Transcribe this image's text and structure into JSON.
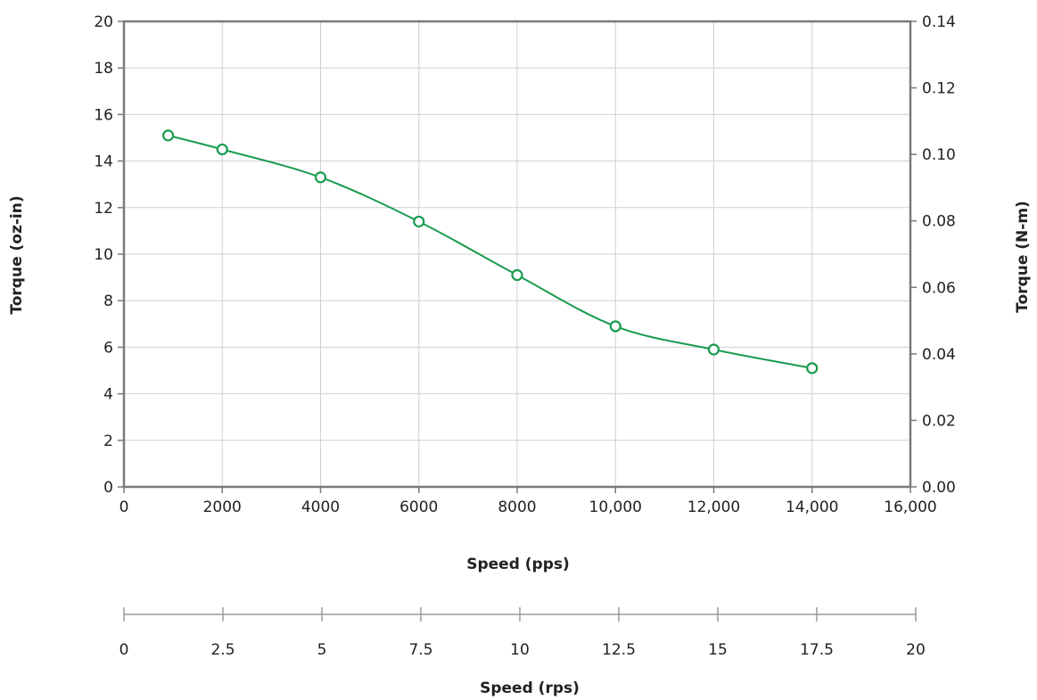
{
  "chart_data": {
    "type": "line",
    "xlabel": "Speed (pps)",
    "ylabel": "Torque (oz-in)",
    "y2label": "Torque (N-m)",
    "x2label": "Speed (rps)",
    "xlim": [
      0,
      16000
    ],
    "ylim": [
      0,
      20
    ],
    "y2lim": [
      0,
      0.14
    ],
    "x2lim": [
      0,
      20
    ],
    "grid": true,
    "x_ticks": [
      {
        "value": 0,
        "label": "0"
      },
      {
        "value": 2000,
        "label": "2000"
      },
      {
        "value": 4000,
        "label": "4000"
      },
      {
        "value": 6000,
        "label": "6000"
      },
      {
        "value": 8000,
        "label": "8000"
      },
      {
        "value": 10000,
        "label": "10,000"
      },
      {
        "value": 12000,
        "label": "12,000"
      },
      {
        "value": 14000,
        "label": "14,000"
      },
      {
        "value": 16000,
        "label": "16,000"
      }
    ],
    "y_ticks": [
      {
        "value": 0,
        "label": "0"
      },
      {
        "value": 2,
        "label": "2"
      },
      {
        "value": 4,
        "label": "4"
      },
      {
        "value": 6,
        "label": "6"
      },
      {
        "value": 8,
        "label": "8"
      },
      {
        "value": 10,
        "label": "10"
      },
      {
        "value": 12,
        "label": "12"
      },
      {
        "value": 14,
        "label": "14"
      },
      {
        "value": 16,
        "label": "16"
      },
      {
        "value": 18,
        "label": "18"
      },
      {
        "value": 20,
        "label": "20"
      }
    ],
    "y2_ticks": [
      {
        "value": 0,
        "label": "0.00"
      },
      {
        "value": 0.02,
        "label": "0.02"
      },
      {
        "value": 0.04,
        "label": "0.04"
      },
      {
        "value": 0.06,
        "label": "0.06"
      },
      {
        "value": 0.08,
        "label": "0.08"
      },
      {
        "value": 0.1,
        "label": "0.10"
      },
      {
        "value": 0.12,
        "label": "0.12"
      },
      {
        "value": 0.14,
        "label": "0.14"
      }
    ],
    "x2_ticks": [
      {
        "value": 0,
        "label": "0"
      },
      {
        "value": 2.5,
        "label": "2.5"
      },
      {
        "value": 5,
        "label": "5"
      },
      {
        "value": 7.5,
        "label": "7.5"
      },
      {
        "value": 10,
        "label": "10"
      },
      {
        "value": 12.5,
        "label": "12.5"
      },
      {
        "value": 15,
        "label": "15"
      },
      {
        "value": 17.5,
        "label": "17.5"
      },
      {
        "value": 20,
        "label": "20"
      }
    ],
    "series": [
      {
        "x": [
          900,
          2000,
          4000,
          6000,
          8000,
          10000,
          12000,
          14000
        ],
        "y": [
          15.1,
          14.5,
          13.3,
          11.4,
          9.1,
          6.9,
          5.9,
          5.1
        ],
        "color": "#1a9b50"
      }
    ],
    "colors": {
      "line": "#1a9b50",
      "grid": "#d0d0d0",
      "axis": "#7a7a7a",
      "text": "#222222"
    }
  }
}
